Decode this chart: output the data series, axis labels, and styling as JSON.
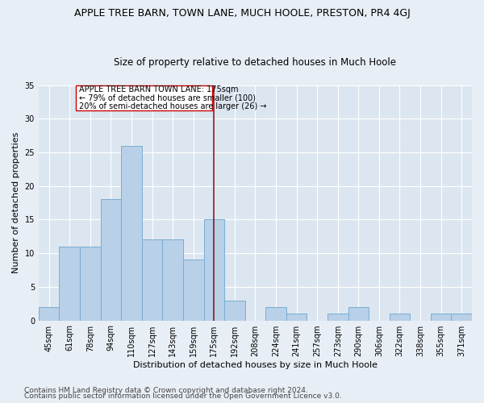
{
  "title": "APPLE TREE BARN, TOWN LANE, MUCH HOOLE, PRESTON, PR4 4GJ",
  "subtitle": "Size of property relative to detached houses in Much Hoole",
  "xlabel": "Distribution of detached houses by size in Much Hoole",
  "ylabel": "Number of detached properties",
  "footnote1": "Contains HM Land Registry data © Crown copyright and database right 2024.",
  "footnote2": "Contains public sector information licensed under the Open Government Licence v3.0.",
  "categories": [
    "45sqm",
    "61sqm",
    "78sqm",
    "94sqm",
    "110sqm",
    "127sqm",
    "143sqm",
    "159sqm",
    "175sqm",
    "192sqm",
    "208sqm",
    "224sqm",
    "241sqm",
    "257sqm",
    "273sqm",
    "290sqm",
    "306sqm",
    "322sqm",
    "338sqm",
    "355sqm",
    "371sqm"
  ],
  "values": [
    2,
    11,
    11,
    18,
    26,
    12,
    12,
    9,
    15,
    3,
    0,
    2,
    1,
    0,
    1,
    2,
    0,
    1,
    0,
    1,
    1
  ],
  "bar_color": "#b8d0e8",
  "bar_edge_color": "#7aadd0",
  "vline_x": 8,
  "vline_color": "#8b1a1a",
  "annotation_line1": "APPLE TREE BARN TOWN LANE: 175sqm",
  "annotation_line2": "← 79% of detached houses are smaller (100)",
  "annotation_line3": "20% of semi-detached houses are larger (26) →",
  "ylim": [
    0,
    35
  ],
  "bg_color": "#e8eef5",
  "plot_bg_color": "#dce6f0",
  "grid_color": "#ffffff",
  "title_fontsize": 9,
  "subtitle_fontsize": 8.5,
  "tick_fontsize": 7,
  "xlabel_fontsize": 8,
  "ylabel_fontsize": 8,
  "annotation_fontsize": 7,
  "footnote_fontsize": 6.5
}
